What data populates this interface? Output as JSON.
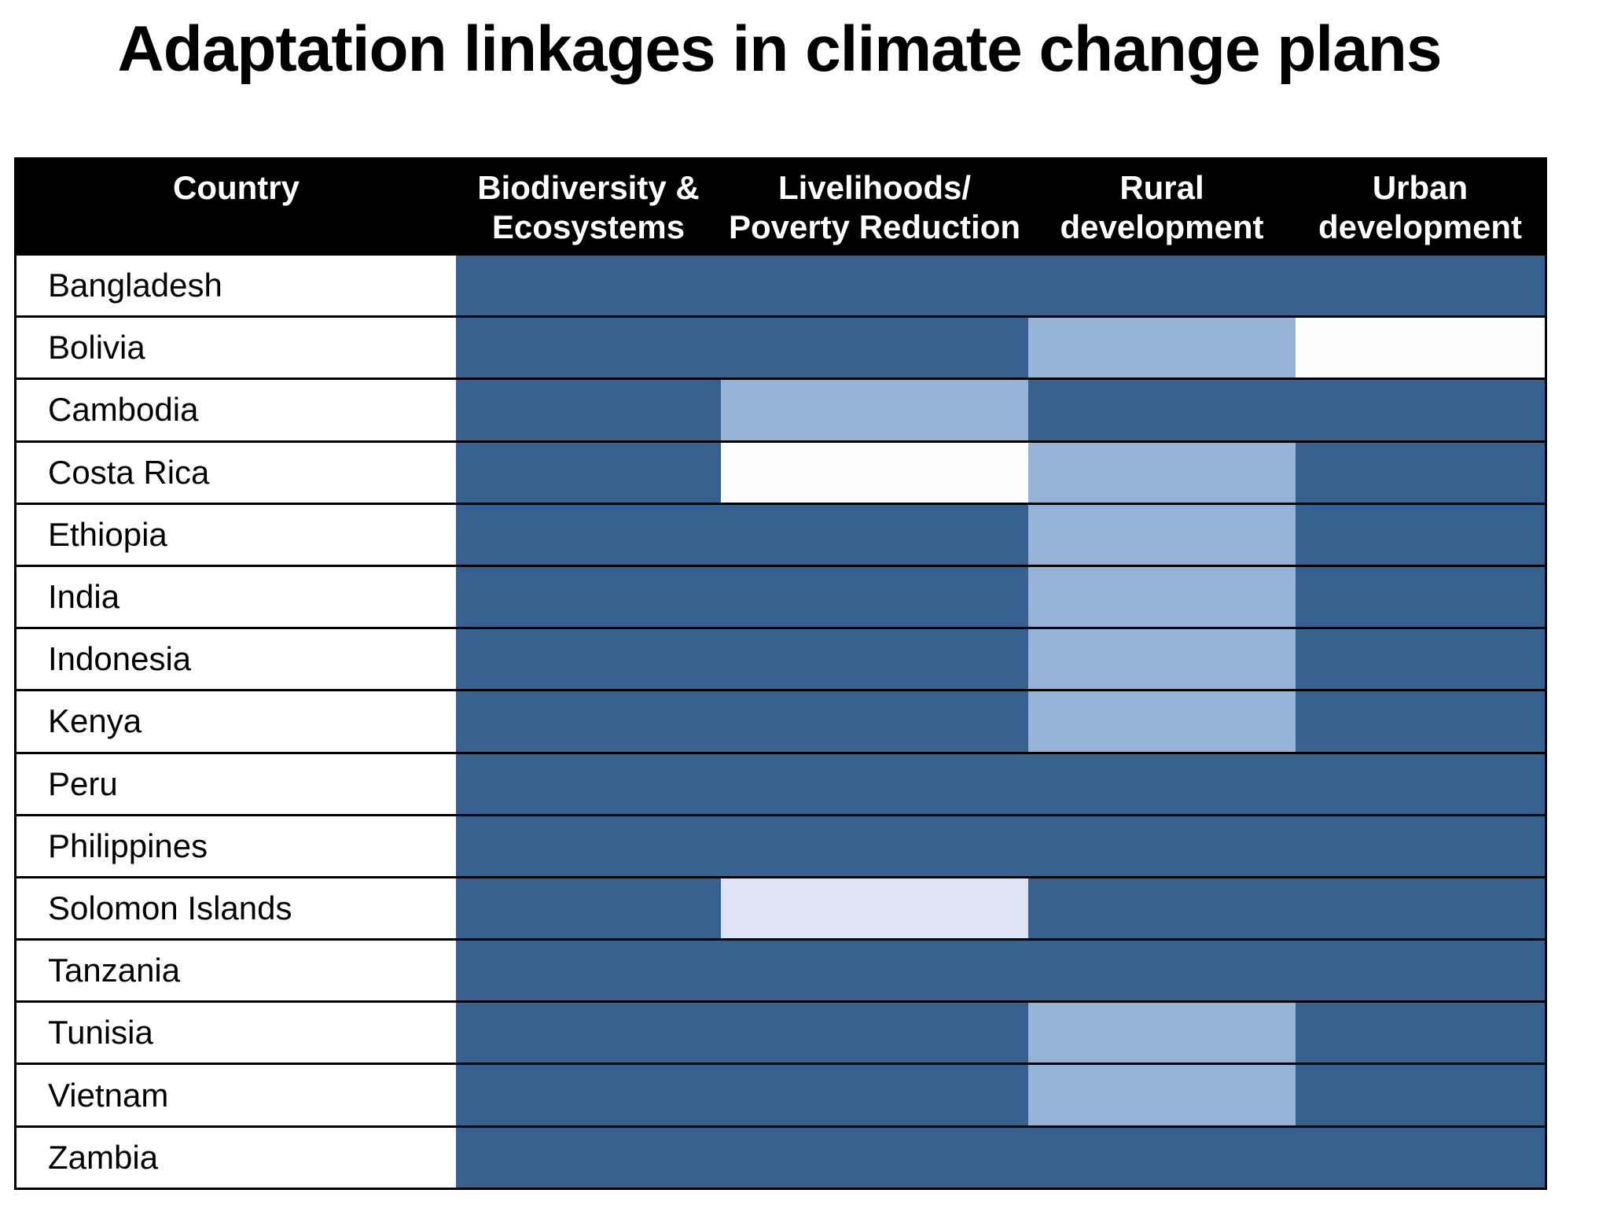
{
  "title": "Adaptation linkages in climate change plans",
  "accent_bar": {
    "orange": "#c9713b",
    "brick": "#a14b38",
    "maroon": "#6d1a3b"
  },
  "table": {
    "header_bg": "#000000",
    "header_text_color": "#ffffff",
    "grid_line_color": "#000000",
    "columns": [
      {
        "key": "country",
        "line1": "Country",
        "line2": ""
      },
      {
        "key": "biodiversity",
        "line1": "Biodiversity &",
        "line2": "Ecosystems"
      },
      {
        "key": "livelihoods",
        "line1": "Livelihoods/",
        "line2": "Poverty Reduction"
      },
      {
        "key": "rural",
        "line1": "Rural",
        "line2": "development"
      },
      {
        "key": "urban",
        "line1": "Urban",
        "line2": "development"
      }
    ],
    "cell_colors": {
      "dark": "#36618f",
      "light": "#95b3d7",
      "lighter": "#dde3f2",
      "white": "#fdfeff"
    },
    "rows": [
      {
        "country": "Bangladesh",
        "cells": [
          "dark",
          "dark",
          "dark",
          "dark"
        ]
      },
      {
        "country": "Bolivia",
        "cells": [
          "dark",
          "dark",
          "light",
          "white"
        ]
      },
      {
        "country": "Cambodia",
        "cells": [
          "dark",
          "light",
          "dark",
          "dark"
        ]
      },
      {
        "country": "Costa Rica",
        "cells": [
          "dark",
          "white",
          "light",
          "dark"
        ]
      },
      {
        "country": "Ethiopia",
        "cells": [
          "dark",
          "dark",
          "light",
          "dark"
        ]
      },
      {
        "country": "India",
        "cells": [
          "dark",
          "dark",
          "light",
          "dark"
        ]
      },
      {
        "country": "Indonesia",
        "cells": [
          "dark",
          "dark",
          "light",
          "dark"
        ]
      },
      {
        "country": "Kenya",
        "cells": [
          "dark",
          "dark",
          "light",
          "dark"
        ]
      },
      {
        "country": "Peru",
        "cells": [
          "dark",
          "dark",
          "dark",
          "dark"
        ]
      },
      {
        "country": "Philippines",
        "cells": [
          "dark",
          "dark",
          "dark",
          "dark"
        ]
      },
      {
        "country": "Solomon Islands",
        "cells": [
          "dark",
          "lighter",
          "dark",
          "dark"
        ]
      },
      {
        "country": "Tanzania",
        "cells": [
          "dark",
          "dark",
          "dark",
          "dark"
        ]
      },
      {
        "country": "Tunisia",
        "cells": [
          "dark",
          "dark",
          "light",
          "dark"
        ]
      },
      {
        "country": "Vietnam",
        "cells": [
          "dark",
          "dark",
          "light",
          "dark"
        ]
      },
      {
        "country": "Zambia",
        "cells": [
          "dark",
          "dark",
          "dark",
          "dark"
        ]
      }
    ]
  },
  "chart_data": {
    "type": "heatmap",
    "title": "Adaptation linkages in climate change plans",
    "x_categories": [
      "Biodiversity & Ecosystems",
      "Livelihoods/Poverty Reduction",
      "Rural development",
      "Urban development"
    ],
    "y_categories": [
      "Bangladesh",
      "Bolivia",
      "Cambodia",
      "Costa Rica",
      "Ethiopia",
      "India",
      "Indonesia",
      "Kenya",
      "Peru",
      "Philippines",
      "Solomon Islands",
      "Tanzania",
      "Tunisia",
      "Vietnam",
      "Zambia"
    ],
    "value_scale": [
      "dark",
      "light",
      "lighter",
      "white"
    ],
    "values": [
      [
        "dark",
        "dark",
        "dark",
        "dark"
      ],
      [
        "dark",
        "dark",
        "light",
        "white"
      ],
      [
        "dark",
        "light",
        "dark",
        "dark"
      ],
      [
        "dark",
        "white",
        "light",
        "dark"
      ],
      [
        "dark",
        "dark",
        "light",
        "dark"
      ],
      [
        "dark",
        "dark",
        "light",
        "dark"
      ],
      [
        "dark",
        "dark",
        "light",
        "dark"
      ],
      [
        "dark",
        "dark",
        "light",
        "dark"
      ],
      [
        "dark",
        "dark",
        "dark",
        "dark"
      ],
      [
        "dark",
        "dark",
        "dark",
        "dark"
      ],
      [
        "dark",
        "lighter",
        "dark",
        "dark"
      ],
      [
        "dark",
        "dark",
        "dark",
        "dark"
      ],
      [
        "dark",
        "dark",
        "light",
        "dark"
      ],
      [
        "dark",
        "dark",
        "light",
        "dark"
      ],
      [
        "dark",
        "dark",
        "dark",
        "dark"
      ]
    ],
    "legend_position": "none",
    "grid": true
  }
}
